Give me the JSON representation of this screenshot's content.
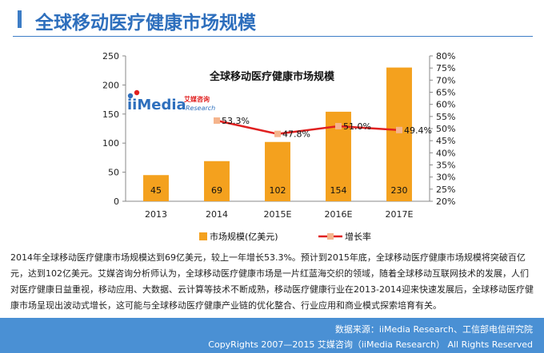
{
  "header": {
    "title": "全球移动医疗健康市场规模"
  },
  "logo": {
    "brand": "iiMedia",
    "sub": "Research",
    "cn": "艾媒咨询"
  },
  "chart_data": {
    "type": "bar",
    "title": "全球移动医疗健康市场规模",
    "categories": [
      "2013",
      "2014",
      "2015E",
      "2016E",
      "2017E"
    ],
    "series": [
      {
        "name": "市场规模(亿美元)",
        "type": "bar",
        "axis": "left",
        "values": [
          45,
          69,
          102,
          154,
          230
        ],
        "labels": [
          "45",
          "69",
          "102",
          "154",
          "230"
        ]
      },
      {
        "name": "增长率",
        "type": "line",
        "axis": "right",
        "values": [
          null,
          53.3,
          47.8,
          51.0,
          49.4
        ],
        "labels": [
          "",
          "53.3%",
          "47.8%",
          "51.0%",
          "49.4%"
        ]
      }
    ],
    "y_left": {
      "min": 0,
      "max": 250,
      "ticks": [
        "0",
        "50",
        "100",
        "150",
        "200",
        "250"
      ]
    },
    "y_right": {
      "min": 20,
      "max": 80,
      "ticks": [
        "20%",
        "25%",
        "30%",
        "35%",
        "40%",
        "45%",
        "50%",
        "55%",
        "60%",
        "65%",
        "70%",
        "75%",
        "80%"
      ]
    },
    "legend_position": "bottom",
    "grid": false,
    "colors": {
      "bar": "#f4a11e",
      "line": "#e02020",
      "marker": "#f5b48c"
    }
  },
  "paragraph": "2014年全球移动医疗健康市场规模达到69亿美元，较上一年增长53.3%。预计到2015年底，全球移动医疗健康市场规模将突破百亿元，达到102亿美元。艾媒咨询分析师认为，全球移动医疗健康市场是一片红蓝海交织的领域，随着全球移动互联网技术的发展，人们对医疗健康日益重视，移动应用、大数据、云计算等技术不断成熟，移动医疗健康行业在2013-2014迎来快速发展后，全球移动医疗健康市场呈现出波动式增长，这可能与全球移动医疗健康产业链的优化整合、行业应用和商业模式探索培育有关。",
  "footer": {
    "source": "数据来源：iiMedia Research、工信部电信研究院",
    "copyright": "CopyRights 2007—2015 艾媒咨询（iiMedia Research） All Rights Reserved"
  }
}
